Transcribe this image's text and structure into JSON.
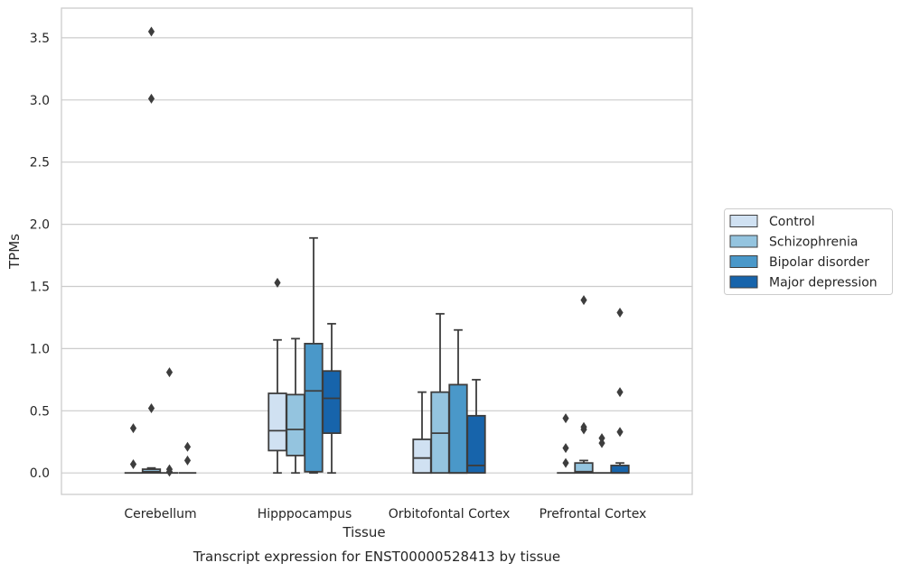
{
  "chart_data": {
    "type": "boxplot",
    "title": "",
    "caption": "Transcript expression for ENST00000528413 by tissue",
    "xlabel": "Tissue",
    "ylabel": "TPMs",
    "ylim": [
      -0.17,
      3.68
    ],
    "yticks": [
      "0.0",
      "0.5",
      "1.0",
      "1.5",
      "2.0",
      "2.5",
      "3.0",
      "3.5"
    ],
    "grid": "horizontal",
    "legend_position": "right",
    "categories": [
      "Cerebellum",
      "Hipppocampus",
      "Orbitofontal Cortex",
      "Prefrontal Cortex"
    ],
    "series": [
      {
        "name": "Control",
        "color": "#d0e1f2",
        "boxes": [
          {
            "min": 0,
            "q1": 0,
            "median": 0,
            "q3": 0,
            "max": 0,
            "outliers": [
              0.36,
              0.07
            ]
          },
          {
            "min": 0,
            "q1": 0.18,
            "median": 0.34,
            "q3": 0.64,
            "max": 1.07,
            "outliers": [
              1.53
            ]
          },
          {
            "min": 0,
            "q1": 0,
            "median": 0.12,
            "q3": 0.27,
            "max": 0.65,
            "outliers": []
          },
          {
            "min": 0,
            "q1": 0,
            "median": 0,
            "q3": 0,
            "max": 0,
            "outliers": [
              0.44,
              0.2,
              0.08
            ]
          }
        ]
      },
      {
        "name": "Schizophrenia",
        "color": "#94c4df",
        "boxes": [
          {
            "min": 0,
            "q1": 0,
            "median": 0.01,
            "q3": 0.03,
            "max": 0.04,
            "outliers": [
              3.55,
              3.01,
              0.52
            ]
          },
          {
            "min": 0,
            "q1": 0.14,
            "median": 0.35,
            "q3": 0.63,
            "max": 1.08,
            "outliers": []
          },
          {
            "min": 0,
            "q1": 0,
            "median": 0.32,
            "q3": 0.65,
            "max": 1.28,
            "outliers": []
          },
          {
            "min": 0,
            "q1": 0,
            "median": 0.01,
            "q3": 0.08,
            "max": 0.1,
            "outliers": [
              1.39,
              0.37,
              0.35
            ]
          }
        ]
      },
      {
        "name": "Bipolar disorder",
        "color": "#4a98c9",
        "boxes": [
          {
            "min": 0,
            "q1": 0,
            "median": 0,
            "q3": 0,
            "max": 0,
            "outliers": [
              0.81,
              0.03,
              0.01
            ]
          },
          {
            "min": 0,
            "q1": 0.01,
            "median": 0.66,
            "q3": 1.04,
            "max": 1.89,
            "outliers": []
          },
          {
            "min": 0,
            "q1": 0,
            "median": 0,
            "q3": 0.71,
            "max": 1.15,
            "outliers": []
          },
          {
            "min": 0,
            "q1": 0,
            "median": 0,
            "q3": 0,
            "max": 0,
            "outliers": [
              0.28,
              0.24
            ]
          }
        ]
      },
      {
        "name": "Major depression",
        "color": "#1764ab",
        "boxes": [
          {
            "min": 0,
            "q1": 0,
            "median": 0,
            "q3": 0,
            "max": 0,
            "outliers": [
              0.21,
              0.1
            ]
          },
          {
            "min": 0,
            "q1": 0.32,
            "median": 0.6,
            "q3": 0.82,
            "max": 1.2,
            "outliers": []
          },
          {
            "min": 0,
            "q1": 0,
            "median": 0.06,
            "q3": 0.46,
            "max": 0.75,
            "outliers": []
          },
          {
            "min": 0,
            "q1": 0,
            "median": 0,
            "q3": 0.06,
            "max": 0.08,
            "outliers": [
              1.29,
              0.65,
              0.33
            ]
          }
        ]
      }
    ]
  }
}
